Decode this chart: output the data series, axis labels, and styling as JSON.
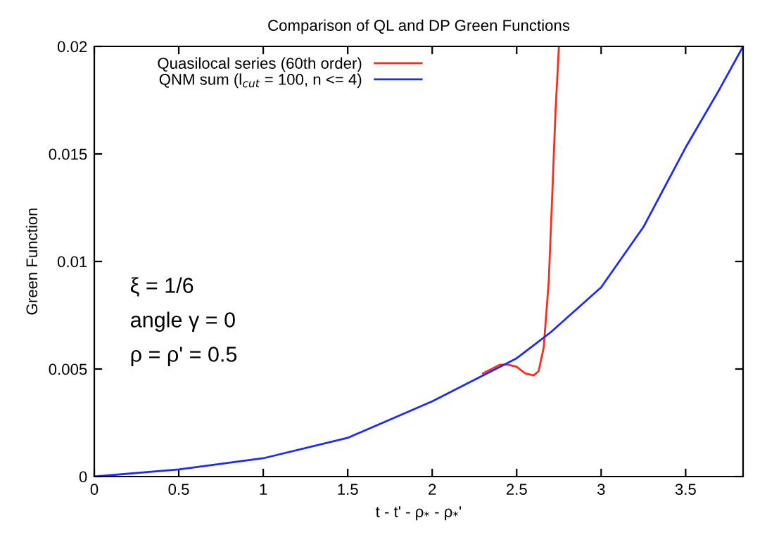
{
  "chart_data": {
    "type": "line",
    "title": "Comparison of QL and DP Green Functions",
    "xlabel": "t - t' - ρ$_{*}$ - ρ$_{*}$'",
    "ylabel": "Green Function",
    "xlim": [
      0,
      3.84
    ],
    "ylim": [
      0,
      0.02
    ],
    "xticks": [
      0,
      0.5,
      1,
      1.5,
      2,
      2.5,
      3,
      3.5
    ],
    "yticks": [
      0,
      0.005,
      0.01,
      0.015,
      0.02
    ],
    "legend": "top left",
    "grid": false,
    "annotations": [
      "ξ = 1/6",
      "angle γ = 0",
      "ρ = ρ' = 0.5"
    ],
    "series": [
      {
        "name": "Quasilocal series (60th order)",
        "color": "#ff2a1a",
        "x": [
          2.3,
          2.4,
          2.45,
          2.5,
          2.55,
          2.6,
          2.63,
          2.66,
          2.69,
          2.71,
          2.73,
          2.75
        ],
        "values": [
          0.0048,
          0.0052,
          0.0052,
          0.0051,
          0.0048,
          0.0047,
          0.0049,
          0.006,
          0.0091,
          0.013,
          0.017,
          0.02
        ]
      },
      {
        "name": "QNM sum (l$_{cut}$ = 100, n <= 4)",
        "color": "#1a2aff",
        "x": [
          0,
          0.5,
          1,
          1.5,
          2,
          2.3,
          2.5,
          2.7,
          3,
          3.25,
          3.5,
          3.7,
          3.84
        ],
        "values": [
          0,
          0.00033,
          0.00085,
          0.0018,
          0.0035,
          0.0047,
          0.0055,
          0.0067,
          0.0088,
          0.0116,
          0.0153,
          0.018,
          0.02
        ]
      }
    ]
  }
}
